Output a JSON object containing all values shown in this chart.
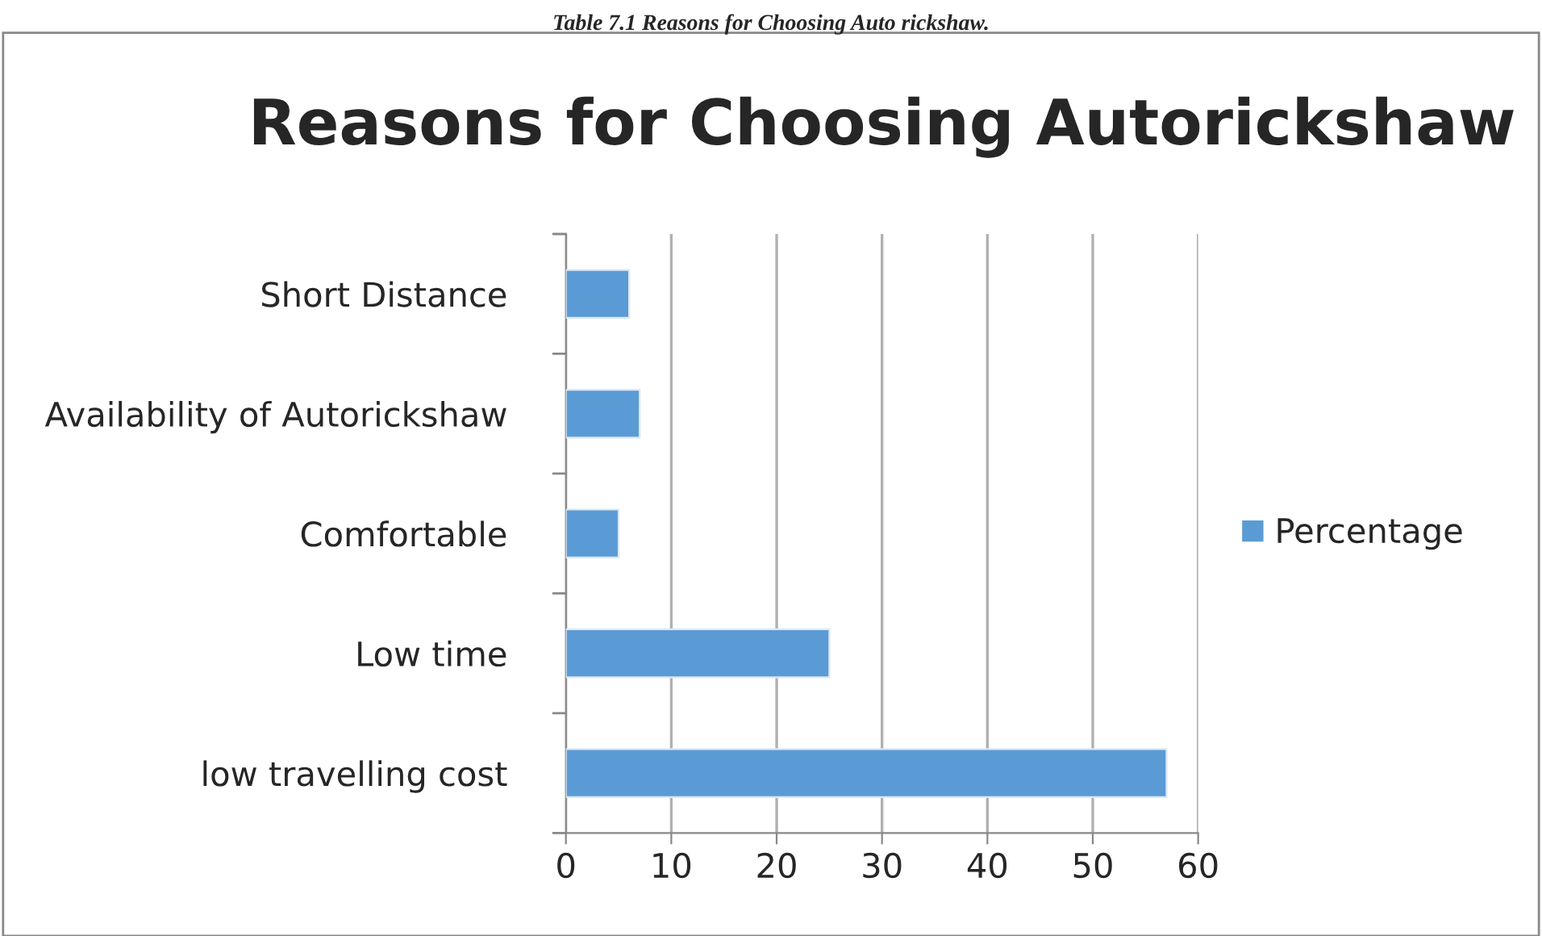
{
  "chart_data": {
    "type": "bar",
    "orientation": "horizontal",
    "title": "Reasons for Choosing Autorickshaw",
    "annotations": [
      "Table 7.1 Reasons for Choosing Auto rickshaw."
    ],
    "categories": [
      "Short Distance",
      "Availability of Autorickshaw",
      "Comfortable",
      "Low time",
      "low travelling cost"
    ],
    "series": [
      {
        "name": "Percentage",
        "color": "#5b9bd5",
        "values": [
          6,
          7,
          5,
          25,
          57
        ]
      }
    ],
    "xlim": [
      0,
      60
    ],
    "xticks": [
      0,
      10,
      20,
      30,
      40,
      50,
      60
    ],
    "grid": "x",
    "legend": "right"
  }
}
